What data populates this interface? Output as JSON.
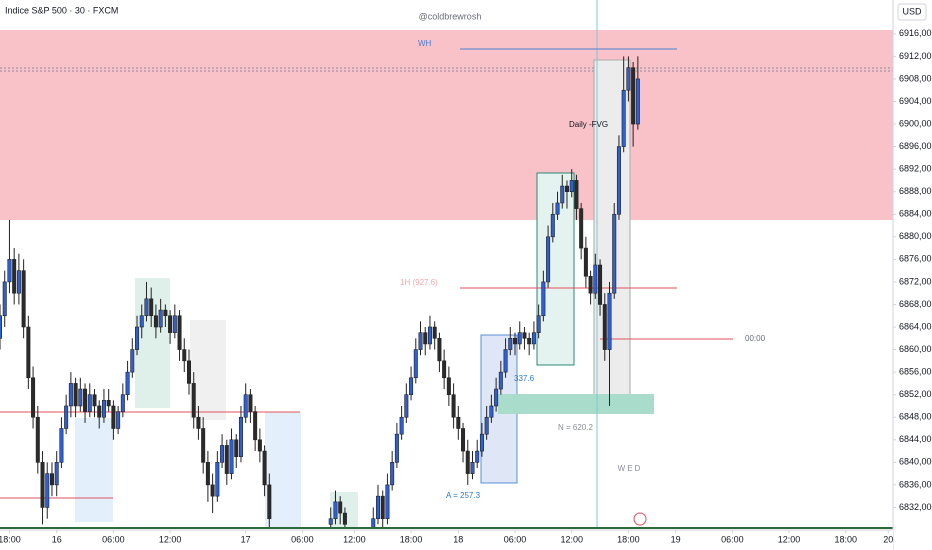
{
  "chart_data": {
    "type": "candlestick",
    "title": "Indice S&P 500 · 30 · FXCM",
    "watermark": "@coldbrewrosh",
    "currency": "USD",
    "up_color": "#2f5fd0",
    "down_color": "#2b2b2b",
    "notes": {
      "wh": "WH",
      "fvg": "Daily -FVG",
      "h1": "1H (927.6)",
      "midnight": "00:00",
      "n": "N = 620.2",
      "a": "A = 257.3",
      "b": "337.6",
      "day": "WED"
    },
    "xlim": [
      -2,
      187
    ],
    "ylim": [
      6828,
      6922
    ],
    "xticks": [
      {
        "value": 0,
        "label": "18:00"
      },
      {
        "value": 10,
        "label": "16"
      },
      {
        "value": 22,
        "label": "06:00"
      },
      {
        "value": 34,
        "label": "12:00"
      },
      {
        "value": 50,
        "label": "17"
      },
      {
        "value": 62,
        "label": "06:00"
      },
      {
        "value": 73,
        "label": "12:00"
      },
      {
        "value": 85,
        "label": "18:00"
      },
      {
        "value": 95,
        "label": "18"
      },
      {
        "value": 107,
        "label": "06:00"
      },
      {
        "value": 119,
        "label": "12:00"
      },
      {
        "value": 131,
        "label": "18:00"
      },
      {
        "value": 141,
        "label": "19"
      },
      {
        "value": 153,
        "label": "06:00"
      },
      {
        "value": 165,
        "label": "12:00"
      },
      {
        "value": 177,
        "label": "18:00"
      },
      {
        "value": 186,
        "label": "20"
      }
    ],
    "yticks": [
      {
        "value": 6916,
        "label": "6916,00"
      },
      {
        "value": 6912,
        "label": "6912,00"
      },
      {
        "value": 6908,
        "label": "6908,00"
      },
      {
        "value": 6904,
        "label": "6904,00"
      },
      {
        "value": 6900,
        "label": "6900,00"
      },
      {
        "value": 6896,
        "label": "6896,00"
      },
      {
        "value": 6892,
        "label": "6892,00"
      },
      {
        "value": 6888,
        "label": "6888,00"
      },
      {
        "value": 6884,
        "label": "6884,00"
      },
      {
        "value": 6880,
        "label": "6880,00"
      },
      {
        "value": 6876,
        "label": "6876,00"
      },
      {
        "value": 6872,
        "label": "6872,00"
      },
      {
        "value": 6868,
        "label": "6868,00"
      },
      {
        "value": 6864,
        "label": "6864,00"
      },
      {
        "value": 6860,
        "label": "6860,00"
      },
      {
        "value": 6856,
        "label": "6856,00"
      },
      {
        "value": 6852,
        "label": "6852,00"
      },
      {
        "value": 6848,
        "label": "6848,00"
      },
      {
        "value": 6844,
        "label": "6844,00"
      },
      {
        "value": 6840,
        "label": "6840,00"
      },
      {
        "value": 6836,
        "label": "6836,00"
      },
      {
        "value": 6832,
        "label": "6832,00"
      }
    ],
    "x": [
      -2,
      -1,
      0,
      1,
      2,
      3,
      4,
      5,
      6,
      7,
      8,
      9,
      10,
      11,
      12,
      13,
      14,
      15,
      16,
      17,
      18,
      19,
      20,
      21,
      22,
      23,
      24,
      25,
      26,
      27,
      28,
      29,
      30,
      31,
      32,
      33,
      34,
      35,
      36,
      37,
      38,
      39,
      40,
      41,
      42,
      43,
      44,
      45,
      46,
      47,
      48,
      49,
      50,
      51,
      52,
      53,
      54,
      55,
      68,
      69,
      70,
      71,
      77,
      78,
      79,
      80,
      81,
      82,
      83,
      84,
      85,
      86,
      87,
      88,
      89,
      90,
      91,
      92,
      93,
      94,
      95,
      96,
      97,
      98,
      99,
      100,
      101,
      102,
      103,
      104,
      105,
      106,
      107,
      108,
      109,
      110,
      111,
      112,
      113,
      114,
      115,
      116,
      117,
      118,
      119,
      120,
      121,
      122,
      123,
      124,
      125,
      126,
      127,
      128,
      129,
      130,
      131,
      132,
      133
    ],
    "open": [
      6862,
      6866,
      6872,
      6876,
      6870,
      6874,
      6864,
      6855,
      6848,
      6840,
      6832,
      6838,
      6836,
      6840,
      6846,
      6850,
      6854,
      6850,
      6853,
      6849,
      6852,
      6850,
      6848,
      6851,
      6850,
      6846,
      6849,
      6852,
      6856,
      6860,
      6864,
      6866,
      6869,
      6866,
      6864,
      6867,
      6866,
      6863,
      6866,
      6860,
      6858,
      6854,
      6848,
      6846,
      6840,
      6836,
      6834,
      6840,
      6843,
      6838,
      6844,
      6841,
      6848,
      6852,
      6849,
      6844,
      6842,
      6836,
      6829,
      6830,
      6833,
      6831,
      6828,
      6830,
      6834,
      6830,
      6836,
      6840,
      6845,
      6848,
      6852,
      6855,
      6860,
      6863,
      6861,
      6864,
      6862,
      6858,
      6855,
      6852,
      6848,
      6846,
      6842,
      6838,
      6840,
      6842,
      6845,
      6848,
      6850,
      6853,
      6856,
      6860,
      6862,
      6861,
      6863,
      6862,
      6861,
      6863,
      6866,
      6872,
      6880,
      6884,
      6886,
      6889,
      6888,
      6890,
      6885,
      6878,
      6873,
      6870,
      6875,
      6868,
      6860,
      6870,
      6884,
      6896,
      6906,
      6910,
      6900
    ],
    "high": [
      6868,
      6874,
      6883,
      6878,
      6877,
      6876,
      6866,
      6857,
      6850,
      6842,
      6840,
      6840,
      6842,
      6848,
      6852,
      6856,
      6855,
      6855,
      6854,
      6854,
      6853,
      6851,
      6853,
      6853,
      6851,
      6850,
      6854,
      6858,
      6862,
      6866,
      6868,
      6872,
      6871,
      6868,
      6869,
      6868,
      6867,
      6868,
      6867,
      6862,
      6860,
      6856,
      6850,
      6848,
      6842,
      6838,
      6842,
      6845,
      6844,
      6846,
      6845,
      6850,
      6854,
      6853,
      6850,
      6846,
      6843,
      6838,
      6832,
      6835,
      6834,
      6832,
      6832,
      6836,
      6835,
      6838,
      6842,
      6847,
      6850,
      6854,
      6857,
      6862,
      6865,
      6864,
      6866,
      6865,
      6863,
      6860,
      6857,
      6854,
      6850,
      6847,
      6844,
      6842,
      6844,
      6847,
      6850,
      6852,
      6855,
      6858,
      6862,
      6864,
      6863,
      6865,
      6864,
      6863,
      6865,
      6868,
      6874,
      6882,
      6886,
      6888,
      6891,
      6890,
      6892,
      6891,
      6886,
      6880,
      6874,
      6877,
      6876,
      6870,
      6872,
      6886,
      6898,
      6912,
      6912,
      6911,
      6912
    ],
    "low": [
      6860,
      6864,
      6870,
      6868,
      6868,
      6862,
      6853,
      6846,
      6838,
      6829,
      6830,
      6834,
      6834,
      6839,
      6845,
      6848,
      6848,
      6849,
      6847,
      6848,
      6848,
      6846,
      6847,
      6849,
      6844,
      6845,
      6848,
      6851,
      6855,
      6859,
      6862,
      6865,
      6864,
      6862,
      6863,
      6864,
      6861,
      6862,
      6858,
      6856,
      6852,
      6846,
      6844,
      6838,
      6833,
      6831,
      6833,
      6839,
      6836,
      6837,
      6839,
      6840,
      6847,
      6847,
      6842,
      6840,
      6834,
      6828,
      6828,
      6829,
      6829,
      6827,
      6827,
      6829,
      6828,
      6829,
      6835,
      6839,
      6844,
      6847,
      6851,
      6854,
      6859,
      6859,
      6860,
      6860,
      6856,
      6853,
      6850,
      6846,
      6844,
      6840,
      6836,
      6837,
      6839,
      6841,
      6844,
      6847,
      6849,
      6852,
      6855,
      6859,
      6859,
      6860,
      6860,
      6859,
      6860,
      6862,
      6865,
      6871,
      6879,
      6883,
      6885,
      6885,
      6887,
      6883,
      6876,
      6871,
      6868,
      6869,
      6866,
      6858,
      6850,
      6869,
      6883,
      6895,
      6904,
      6896,
      6899
    ],
    "close": [
      6866,
      6872,
      6876,
      6870,
      6874,
      6864,
      6855,
      6848,
      6840,
      6832,
      6838,
      6836,
      6840,
      6846,
      6850,
      6854,
      6850,
      6853,
      6849,
      6852,
      6850,
      6848,
      6851,
      6850,
      6846,
      6849,
      6852,
      6856,
      6860,
      6864,
      6866,
      6869,
      6866,
      6864,
      6867,
      6866,
      6863,
      6866,
      6860,
      6858,
      6854,
      6848,
      6846,
      6840,
      6836,
      6834,
      6840,
      6843,
      6838,
      6844,
      6841,
      6848,
      6852,
      6849,
      6844,
      6842,
      6836,
      6830,
      6830,
      6833,
      6831,
      6829,
      6830,
      6834,
      6830,
      6836,
      6840,
      6845,
      6848,
      6852,
      6855,
      6860,
      6863,
      6861,
      6864,
      6862,
      6858,
      6855,
      6852,
      6848,
      6846,
      6842,
      6838,
      6840,
      6842,
      6845,
      6848,
      6850,
      6853,
      6856,
      6860,
      6862,
      6861,
      6863,
      6862,
      6861,
      6863,
      6866,
      6872,
      6880,
      6884,
      6886,
      6889,
      6888,
      6890,
      6885,
      6878,
      6873,
      6870,
      6875,
      6868,
      6860,
      6870,
      6884,
      6896,
      6906,
      6910,
      6900,
      6908
    ]
  }
}
